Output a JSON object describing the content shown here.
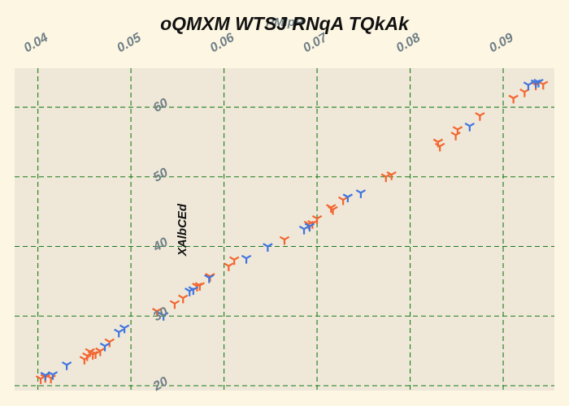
{
  "colors": {
    "background": "#fdf6e3",
    "plot_area": "#efe8d8",
    "grid": "#1a7a1a",
    "tick_label": "#6f7f86",
    "title": "#111111"
  },
  "chart_data": {
    "type": "scatter",
    "title": "oQMXM WTSJ RNqA TQkAk",
    "xlabel": "PMIpP",
    "ylabel": "XAlbCEd",
    "xlim": [
      0.0375,
      0.0955
    ],
    "ylim": [
      19.3,
      65.6
    ],
    "x_ticks": [
      0.04,
      0.05,
      0.06,
      0.07,
      0.08,
      0.09
    ],
    "y_ticks": [
      20,
      30,
      40,
      50,
      60
    ],
    "x_tick_labels": [
      "0.04",
      "0.05",
      "0.06",
      "0.07",
      "0.08",
      "0.09"
    ],
    "y_tick_labels": [
      "20",
      "30",
      "40",
      "50",
      "60"
    ],
    "x_axis_position": "top",
    "grid": true,
    "marker": "tri",
    "series": [
      {
        "color": "#f26530",
        "points": [
          [
            0.0403,
            21.0
          ],
          [
            0.0408,
            21.2
          ],
          [
            0.0414,
            21.1
          ],
          [
            0.045,
            23.8
          ],
          [
            0.0453,
            24.3
          ],
          [
            0.0456,
            24.9
          ],
          [
            0.0459,
            24.5
          ],
          [
            0.0462,
            24.6
          ],
          [
            0.0467,
            25.0
          ],
          [
            0.0477,
            26.3
          ],
          [
            0.0528,
            30.7
          ],
          [
            0.0547,
            31.8
          ],
          [
            0.0556,
            32.6
          ],
          [
            0.0571,
            34.3
          ],
          [
            0.0574,
            34.4
          ],
          [
            0.0585,
            35.7
          ],
          [
            0.0605,
            37.2
          ],
          [
            0.0611,
            38.1
          ],
          [
            0.0665,
            41.0
          ],
          [
            0.0691,
            43.2
          ],
          [
            0.0695,
            43.3
          ],
          [
            0.07,
            44.0
          ],
          [
            0.0715,
            45.6
          ],
          [
            0.0717,
            45.3
          ],
          [
            0.0728,
            46.7
          ],
          [
            0.0774,
            50.0
          ],
          [
            0.078,
            50.3
          ],
          [
            0.083,
            55.0
          ],
          [
            0.0832,
            54.4
          ],
          [
            0.0849,
            56.0
          ],
          [
            0.0851,
            56.8
          ],
          [
            0.0875,
            58.8
          ],
          [
            0.0911,
            61.3
          ],
          [
            0.0923,
            62.2
          ],
          [
            0.0935,
            63.2
          ],
          [
            0.0943,
            63.3
          ]
        ]
      },
      {
        "color": "#3f74e0",
        "points": [
          [
            0.0408,
            21.5
          ],
          [
            0.0416,
            21.6
          ],
          [
            0.0431,
            23.0
          ],
          [
            0.0472,
            25.7
          ],
          [
            0.0487,
            27.7
          ],
          [
            0.0493,
            28.3
          ],
          [
            0.0535,
            30.1
          ],
          [
            0.0563,
            33.6
          ],
          [
            0.0567,
            33.8
          ],
          [
            0.0584,
            35.5
          ],
          [
            0.0624,
            38.3
          ],
          [
            0.0647,
            40.0
          ],
          [
            0.0686,
            42.5
          ],
          [
            0.0692,
            42.9
          ],
          [
            0.0733,
            47.1
          ],
          [
            0.0747,
            47.7
          ],
          [
            0.0864,
            57.3
          ],
          [
            0.0927,
            63.2
          ],
          [
            0.0935,
            63.5
          ],
          [
            0.0938,
            63.6
          ]
        ]
      }
    ]
  }
}
